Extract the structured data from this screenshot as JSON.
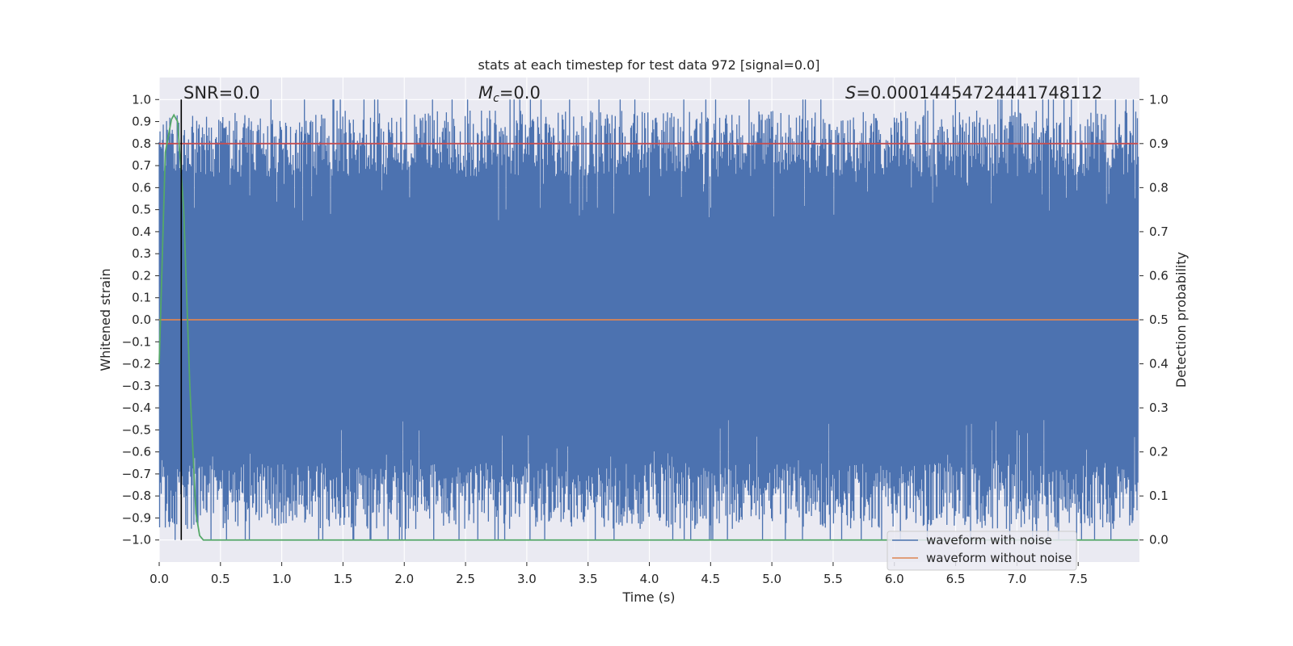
{
  "chart_data": {
    "type": "line",
    "title": "stats at each timestep for test data 972 [signal=0.0]",
    "xlabel": "Time (s)",
    "ylabel_left": "Whitened strain",
    "ylabel_right": "Detection probability",
    "xlim": [
      0.0,
      8.0
    ],
    "ylim_left": [
      -1.1,
      1.1
    ],
    "ylim_right": [
      -0.05,
      1.05
    ],
    "grid": true,
    "x_ticks": [
      "0.0",
      "0.5",
      "1.0",
      "1.5",
      "2.0",
      "2.5",
      "3.0",
      "3.5",
      "4.0",
      "4.5",
      "5.0",
      "5.5",
      "6.0",
      "6.5",
      "7.0",
      "7.5"
    ],
    "y_ticks_left": [
      "1.0",
      "0.9",
      "0.8",
      "0.7",
      "0.6",
      "0.5",
      "0.4",
      "0.3",
      "0.2",
      "0.1",
      "0.0",
      "−0.1",
      "−0.2",
      "−0.3",
      "−0.4",
      "−0.5",
      "−0.6",
      "−0.7",
      "−0.8",
      "−0.9",
      "−1.0"
    ],
    "y_ticks_right": [
      "1.0",
      "0.9",
      "0.8",
      "0.7",
      "0.6",
      "0.5",
      "0.4",
      "0.3",
      "0.2",
      "0.1",
      "0.0"
    ],
    "annotations": {
      "snr_label": "SNR=0.0",
      "mc_symbol": "M",
      "mc_subscript": "c",
      "mc_value": "=0.0",
      "s_symbol": "S",
      "s_value": "=0.00014454724441748112"
    },
    "legend": {
      "position": "bottom-right",
      "entries": [
        {
          "label": "waveform with noise",
          "color": "#4c72b0"
        },
        {
          "label": "waveform without noise",
          "color": "#dd8452"
        }
      ]
    },
    "series": [
      {
        "name": "waveform with noise",
        "axis": "left",
        "color": "#4c72b0",
        "x_range": [
          0.0,
          7.99
        ],
        "y_range": [
          -1.0,
          1.0
        ],
        "description_values": {
          "typical_max": 0.95,
          "typical_min": -0.95
        }
      },
      {
        "name": "waveform without noise",
        "axis": "left",
        "color": "#dd8452",
        "x": [
          0.0,
          7.99
        ],
        "y": [
          0.0,
          0.0
        ]
      },
      {
        "name": "threshold",
        "axis": "right",
        "color": "#c44e52",
        "x": [
          0.0,
          7.99
        ],
        "y": [
          0.9,
          0.9
        ]
      },
      {
        "name": "detection probability",
        "axis": "right",
        "color": "#55a868",
        "x": [
          0.0,
          0.05,
          0.1,
          0.12,
          0.15,
          0.2,
          0.25,
          0.3,
          0.33,
          0.36,
          7.99
        ],
        "y": [
          0.4,
          0.88,
          0.955,
          0.965,
          0.95,
          0.75,
          0.35,
          0.06,
          0.01,
          0.0,
          0.0
        ]
      }
    ],
    "vline": {
      "x": 0.18,
      "color": "#000000"
    }
  }
}
